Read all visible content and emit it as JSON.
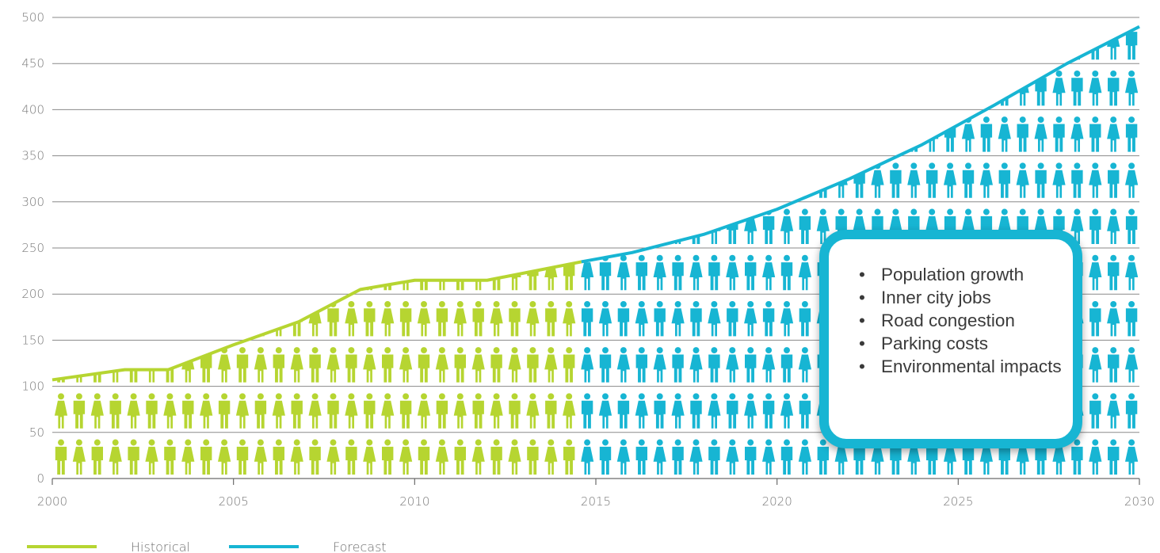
{
  "chart_data": {
    "type": "area",
    "title": "",
    "xlabel": "",
    "ylabel": "",
    "xlim": [
      2000,
      2030
    ],
    "ylim": [
      0,
      500
    ],
    "x_ticks": [
      "2000",
      "2005",
      "2010",
      "2015",
      "2020",
      "2025",
      "2030"
    ],
    "y_ticks": [
      "0",
      "50",
      "100",
      "150",
      "200",
      "250",
      "300",
      "350",
      "400",
      "450",
      "500"
    ],
    "grid": true,
    "legend": "bottom-left",
    "series": [
      {
        "name": "Historical",
        "color": "#b6d531",
        "x": [
          2000,
          2002,
          2003.2,
          2005,
          2006.8,
          2008.5,
          2010,
          2012,
          2014.6
        ],
        "y": [
          107,
          118,
          118,
          145,
          170,
          205,
          215,
          215,
          235
        ]
      },
      {
        "name": "Forecast",
        "color": "#17b5d3",
        "x": [
          2014.6,
          2016,
          2018,
          2020,
          2022,
          2024,
          2026,
          2028,
          2030
        ],
        "y": [
          235,
          245,
          265,
          292,
          325,
          362,
          405,
          450,
          490
        ]
      }
    ],
    "icon": "person-icon"
  },
  "callout": {
    "items": [
      "Population growth",
      "Inner city jobs",
      "Road congestion",
      "Parking costs",
      "Environmental impacts"
    ]
  }
}
